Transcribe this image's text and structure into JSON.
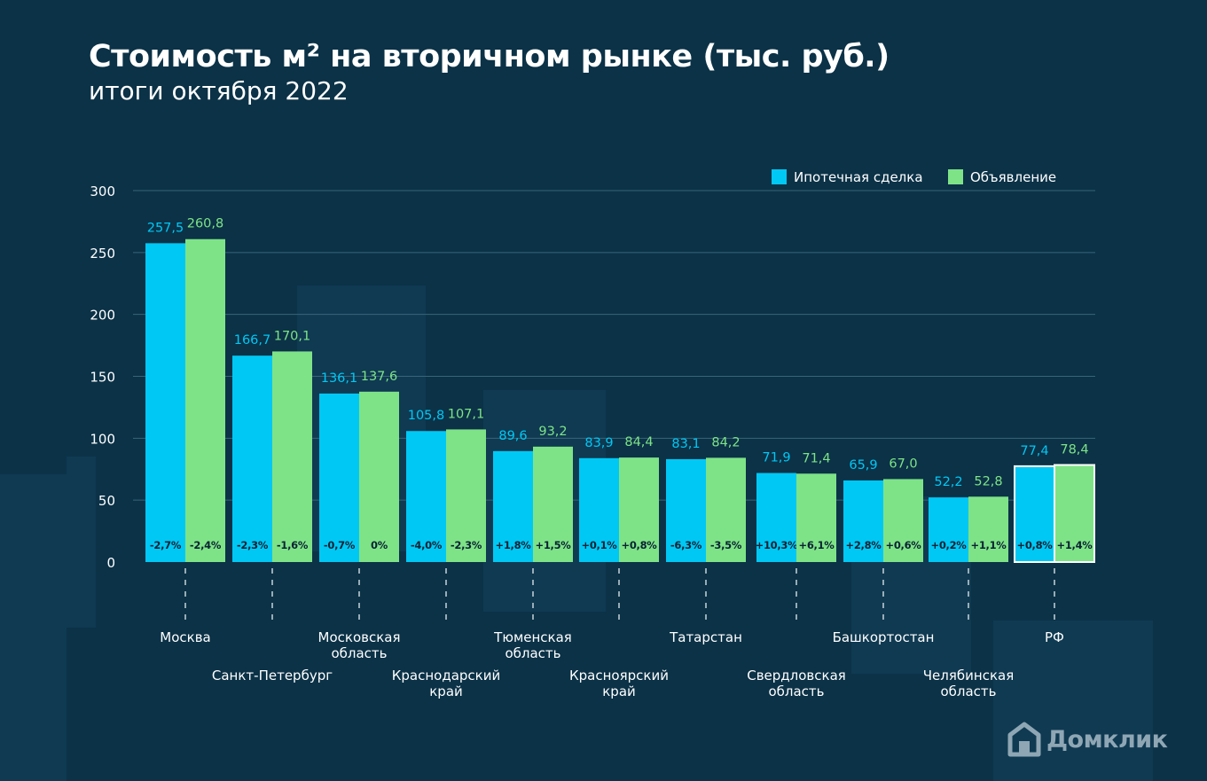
{
  "header": {
    "title": "Стоимость м² на вторичном рынке (тыс. руб.)",
    "subtitle": "итоги октября 2022"
  },
  "logo": {
    "text": "Домклик",
    "icon": "house-logo-icon"
  },
  "colors": {
    "mortgage": "#00c8f5",
    "listing": "#7ee387",
    "background": "#0b3247",
    "grid": "#3a6478",
    "text": "#ffffff",
    "change": "#0b2233"
  },
  "chart_data": {
    "type": "bar",
    "title": "Стоимость м² на вторичном рынке (тыс. руб.)",
    "subtitle": "итоги октября 2022",
    "ylim": [
      0,
      300
    ],
    "yticks": [
      0,
      50,
      100,
      150,
      200,
      250,
      300
    ],
    "grid": true,
    "legend_position": "top-right",
    "categories": [
      [
        "Москва"
      ],
      [
        "Санкт-Петербург"
      ],
      [
        "Московская",
        "область"
      ],
      [
        "Краснодарский",
        "край"
      ],
      [
        "Тюменская",
        "область"
      ],
      [
        "Красноярский",
        "край"
      ],
      [
        "Татарстан"
      ],
      [
        "Свердловская",
        "область"
      ],
      [
        "Башкортостан"
      ],
      [
        "Челябинская",
        "область"
      ],
      [
        "РФ"
      ]
    ],
    "series": [
      {
        "name": "Ипотечная сделка",
        "values": [
          257.5,
          166.7,
          136.1,
          105.8,
          89.6,
          83.9,
          83.1,
          71.9,
          65.9,
          52.2,
          77.4
        ],
        "labels": [
          "257,5",
          "166,7",
          "136,1",
          "105,8",
          "89,6",
          "83,9",
          "83,1",
          "71,9",
          "65,9",
          "52,2",
          "77,4"
        ],
        "changes": [
          "-2,7%",
          "-2,3%",
          "-0,7%",
          "-4,0%",
          "+1,8%",
          "+0,1%",
          "-6,3%",
          "+10,3%",
          "+2,8%",
          "+0,2%",
          "+0,8%"
        ]
      },
      {
        "name": "Объявление",
        "values": [
          260.8,
          170.1,
          137.6,
          107.1,
          93.2,
          84.4,
          84.2,
          71.4,
          67.0,
          52.8,
          78.4
        ],
        "labels": [
          "260,8",
          "170,1",
          "137,6",
          "107,1",
          "93,2",
          "84,4",
          "84,2",
          "71,4",
          "67,0",
          "52,8",
          "78,4"
        ],
        "changes": [
          "-2,4%",
          "-1,6%",
          "0%",
          "-2,3%",
          "+1,5%",
          "+0,8%",
          "-3,5%",
          "+6,1%",
          "+0,6%",
          "+1,1%",
          "+1,4%"
        ]
      }
    ]
  }
}
